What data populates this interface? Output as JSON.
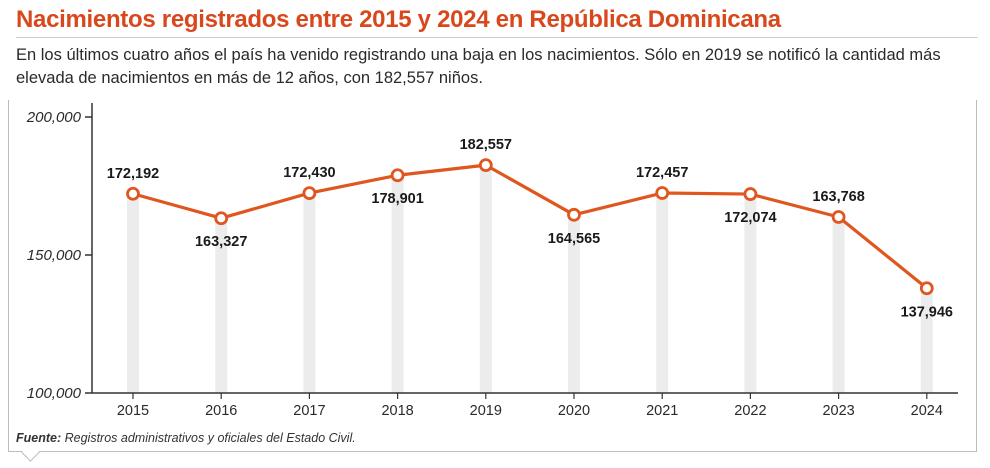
{
  "title": "Nacimientos registrados entre 2015 y 2024 en República Dominicana",
  "subtitle": "En los últimos cuatro años el país ha venido registrando una baja en los nacimientos. Sólo en 2019 se notificó la cantidad más elevada de nacimientos en más de 12 años, con 182,557 niños.",
  "source": {
    "label": "Fuente:",
    "text": "Registros administrativos y oficiales del Estado Civil."
  },
  "colors": {
    "accent": "#d9481c",
    "line": "#e0561f",
    "bar": "#ececec",
    "axis": "#333333"
  },
  "chart_data": {
    "type": "line",
    "title": "Nacimientos registrados entre 2015 y 2024 en República Dominicana",
    "xlabel": "",
    "ylabel": "",
    "ylim": [
      100000,
      200000
    ],
    "yticks": [
      100000,
      150000,
      200000
    ],
    "ytick_labels": [
      "100,000",
      "150,000",
      "200,000"
    ],
    "categories": [
      "2015",
      "2016",
      "2017",
      "2018",
      "2019",
      "2020",
      "2021",
      "2022",
      "2023",
      "2024"
    ],
    "values": [
      172192,
      163327,
      172430,
      178901,
      182557,
      164565,
      172457,
      172074,
      163768,
      137946
    ],
    "data_labels": [
      "172,192",
      "163,327",
      "172,430",
      "178,901",
      "182,557",
      "164,565",
      "172,457",
      "172,074",
      "163,768",
      "137,946"
    ],
    "label_positions": [
      "above",
      "below",
      "above",
      "below",
      "above",
      "below",
      "above",
      "below",
      "above",
      "below"
    ],
    "grid": false,
    "legend": "none"
  }
}
